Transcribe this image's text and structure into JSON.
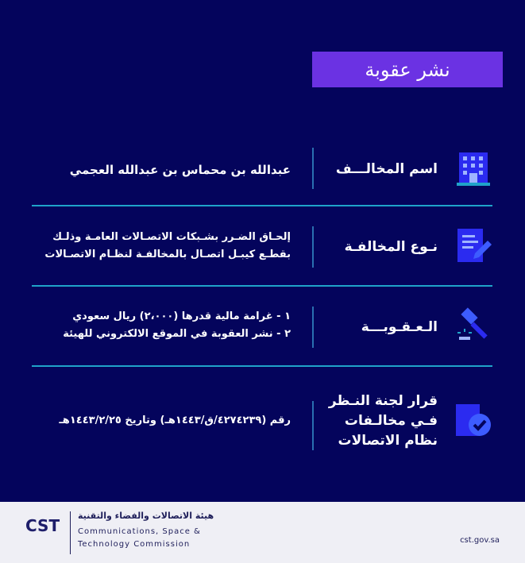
{
  "title": "نشر عقوبة",
  "rows": [
    {
      "label": "اسم المخالـــف",
      "value": "عبدالله بن محماس بن عبدالله العجمي",
      "icon": "building-icon"
    },
    {
      "label": "نـوع المخالفـة",
      "value_lines": [
        "إلحـاق الضـرر بشـبكات الاتصـالات العامـة وذلـك",
        "بقطـع كيبـل اتصـال بالمخالفـة لنظـام الاتصـالات"
      ],
      "icon": "document-pen-icon"
    },
    {
      "label": "الـعـقـوبـــة",
      "value_lines": [
        "١ -  غرامة مالية قدرها (٢،٠٠٠) ريال سعودي",
        "٢ - نشر العقوبة في الموقع الالكتروني للهيئة"
      ],
      "icon": "gavel-icon"
    },
    {
      "label_lines": [
        "قرار لجنة النـظر",
        "فـي مخالـفات",
        "نظام الاتصالات"
      ],
      "value": "رقم (٤٢٧٤٢٣٩/ق/١٤٤٣هـ) وتاريخ ١٤٤٣/٢/٢٥هـ",
      "icon": "badge-check-icon"
    }
  ],
  "footer": {
    "logo": "CST",
    "org_ar": "هيئة الاتصالات والفضاء والتقنية",
    "org_en_1": "Communications, Space &",
    "org_en_2": "Technology Commission",
    "url": "cst.gov.sa"
  },
  "colors": {
    "background": "#04045c",
    "accent": "#6b32e3",
    "divider": "#1fa3c9",
    "icon": "#2b2bf0"
  }
}
